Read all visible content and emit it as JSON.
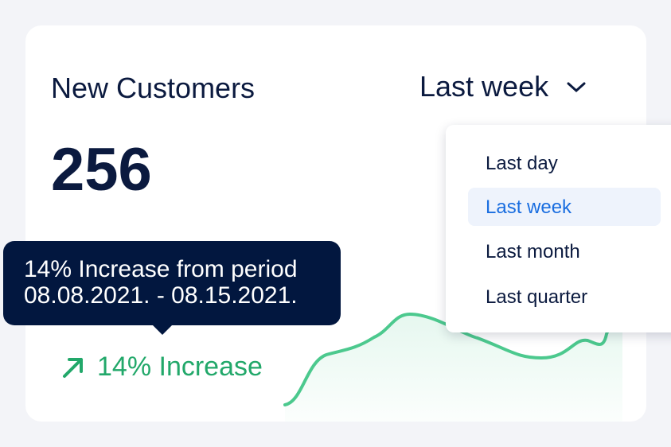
{
  "card": {
    "title": "New Customers",
    "value": "256",
    "period_selected": "Last week"
  },
  "dropdown": {
    "options": [
      "Last day",
      "Last week",
      "Last month",
      "Last quarter"
    ],
    "selected_index": 1
  },
  "tooltip": {
    "line1": "14% Increase from period",
    "line2": "08.08.2021. - 08.15.2021."
  },
  "trend": {
    "label": "14% Increase",
    "icon": "arrow-up-right-icon"
  },
  "colors": {
    "accent_green": "#4cc98e",
    "navy": "#02173f",
    "blue": "#1a6ee0"
  }
}
